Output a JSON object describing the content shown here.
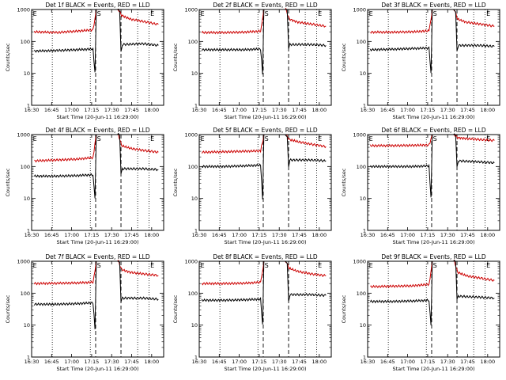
{
  "figure": {
    "panel_titles": [
      "Det 1f BLACK = Events, RED = LLD",
      "Det 2f BLACK = Events, RED = LLD",
      "Det 3f BLACK = Events, RED = LLD",
      "Det 4f BLACK = Events, RED = LLD",
      "Det 5f BLACK = Events, RED = LLD",
      "Det 6f BLACK = Events, RED = LLD",
      "Det 7f BLACK = Events, RED = LLD",
      "Det 8f BLACK = Events, RED = LLD",
      "Det 9f BLACK = Events, RED = LLD"
    ],
    "xlabel": "Start Time (20-Jun-11 16:29:00)",
    "ylabel": "Counts/sec",
    "x_tick_labels": [
      "16:30",
      "16:45",
      "17:00",
      "17:15",
      "17:30",
      "17:45",
      "18:00"
    ],
    "y_tick_labels": [
      "1",
      "10",
      "100",
      "1000"
    ],
    "marker_labels": [
      "E",
      "S",
      "E"
    ],
    "colors": {
      "events": "#000000",
      "lld": "#cc0000",
      "axes": "#000000"
    }
  },
  "chart_data": {
    "type": "line",
    "xlabel": "Start Time (20-Jun-11 16:29:00)",
    "ylabel": "Counts/sec",
    "x_units": "minutes from 16:29:00",
    "x_ticks": [
      1,
      16,
      31,
      46,
      61,
      76,
      91
    ],
    "xlim": [
      1,
      100
    ],
    "ylim": [
      1,
      1000
    ],
    "y_scale": "log",
    "marker_lines": {
      "dotted": [
        16.5,
        45,
        80.5,
        89
      ],
      "dashed": [
        49,
        68
      ],
      "labels_at": [
        {
          "text": "E",
          "x": 2
        },
        {
          "text": "S",
          "x": 50
        },
        {
          "text": "E",
          "x": 90
        }
      ]
    },
    "panels": [
      {
        "title": "Det 1f BLACK = Events, RED = LLD",
        "series": [
          {
            "name": "Events",
            "values": [
              [
                3,
                50
              ],
              [
                20,
                52
              ],
              [
                35,
                55
              ],
              [
                47,
                58
              ],
              [
                48.5,
                10
              ],
              [
                49.5,
                1000
              ],
              [
                66,
                1000
              ],
              [
                67,
                900
              ],
              [
                68,
                50
              ],
              [
                69,
                80
              ],
              [
                85,
                85
              ],
              [
                96,
                75
              ]
            ]
          },
          {
            "name": "LLD",
            "values": [
              [
                3,
                200
              ],
              [
                20,
                190
              ],
              [
                35,
                210
              ],
              [
                47,
                230
              ],
              [
                48.5,
                500
              ],
              [
                49.5,
                1000
              ],
              [
                66,
                1000
              ],
              [
                68.5,
                650
              ],
              [
                75,
                500
              ],
              [
                85,
                420
              ],
              [
                96,
                340
              ]
            ]
          }
        ]
      },
      {
        "title": "Det 2f BLACK = Events, RED = LLD",
        "series": [
          {
            "name": "Events",
            "values": [
              [
                3,
                55
              ],
              [
                20,
                55
              ],
              [
                35,
                55
              ],
              [
                47,
                58
              ],
              [
                48.5,
                10
              ],
              [
                49.5,
                1000
              ],
              [
                66,
                1000
              ],
              [
                67,
                900
              ],
              [
                68,
                55
              ],
              [
                69,
                80
              ],
              [
                85,
                80
              ],
              [
                96,
                75
              ]
            ]
          },
          {
            "name": "LLD",
            "values": [
              [
                3,
                190
              ],
              [
                20,
                190
              ],
              [
                35,
                195
              ],
              [
                47,
                210
              ],
              [
                48.5,
                500
              ],
              [
                49.5,
                1000
              ],
              [
                66,
                1000
              ],
              [
                68.5,
                500
              ],
              [
                75,
                400
              ],
              [
                85,
                350
              ],
              [
                96,
                300
              ]
            ]
          }
        ]
      },
      {
        "title": "Det 3f BLACK = Events, RED = LLD",
        "series": [
          {
            "name": "Events",
            "values": [
              [
                3,
                55
              ],
              [
                20,
                57
              ],
              [
                35,
                60
              ],
              [
                47,
                62
              ],
              [
                48.5,
                10
              ],
              [
                49.5,
                1000
              ],
              [
                66,
                1000
              ],
              [
                67,
                900
              ],
              [
                68,
                55
              ],
              [
                69,
                75
              ],
              [
                85,
                75
              ],
              [
                96,
                70
              ]
            ]
          },
          {
            "name": "LLD",
            "values": [
              [
                3,
                195
              ],
              [
                20,
                195
              ],
              [
                35,
                200
              ],
              [
                47,
                215
              ],
              [
                48.5,
                500
              ],
              [
                49.5,
                1000
              ],
              [
                66,
                1000
              ],
              [
                68.5,
                500
              ],
              [
                75,
                400
              ],
              [
                85,
                350
              ],
              [
                96,
                300
              ]
            ]
          }
        ]
      },
      {
        "title": "Det 4f BLACK = Events, RED = LLD",
        "series": [
          {
            "name": "Events",
            "values": [
              [
                3,
                50
              ],
              [
                20,
                50
              ],
              [
                35,
                52
              ],
              [
                47,
                55
              ],
              [
                48.5,
                10
              ],
              [
                49.5,
                1000
              ],
              [
                66,
                1000
              ],
              [
                67,
                900
              ],
              [
                68,
                55
              ],
              [
                69,
                85
              ],
              [
                85,
                85
              ],
              [
                96,
                80
              ]
            ]
          },
          {
            "name": "LLD",
            "values": [
              [
                3,
                150
              ],
              [
                20,
                160
              ],
              [
                35,
                170
              ],
              [
                47,
                190
              ],
              [
                48.5,
                500
              ],
              [
                49.5,
                1000
              ],
              [
                66,
                1000
              ],
              [
                68.5,
                450
              ],
              [
                75,
                370
              ],
              [
                85,
                320
              ],
              [
                96,
                280
              ]
            ]
          }
        ]
      },
      {
        "title": "Det 5f BLACK = Events, RED = LLD",
        "series": [
          {
            "name": "Events",
            "values": [
              [
                3,
                100
              ],
              [
                20,
                100
              ],
              [
                35,
                105
              ],
              [
                47,
                110
              ],
              [
                48.5,
                10
              ],
              [
                49.5,
                1000
              ],
              [
                66,
                1000
              ],
              [
                67,
                900
              ],
              [
                68,
                100
              ],
              [
                69,
                160
              ],
              [
                85,
                160
              ],
              [
                96,
                150
              ]
            ]
          },
          {
            "name": "LLD",
            "values": [
              [
                3,
                280
              ],
              [
                20,
                290
              ],
              [
                35,
                300
              ],
              [
                47,
                310
              ],
              [
                48.5,
                600
              ],
              [
                49.5,
                1000
              ],
              [
                66,
                1000
              ],
              [
                68.5,
                700
              ],
              [
                75,
                600
              ],
              [
                85,
                500
              ],
              [
                96,
                420
              ]
            ]
          }
        ]
      },
      {
        "title": "Det 6f BLACK = Events, RED = LLD",
        "series": [
          {
            "name": "Events",
            "values": [
              [
                3,
                100
              ],
              [
                20,
                100
              ],
              [
                35,
                100
              ],
              [
                47,
                105
              ],
              [
                48.5,
                10
              ],
              [
                49.5,
                1000
              ],
              [
                66,
                1000
              ],
              [
                67,
                900
              ],
              [
                68,
                100
              ],
              [
                69,
                150
              ],
              [
                85,
                140
              ],
              [
                96,
                130
              ]
            ]
          },
          {
            "name": "LLD",
            "values": [
              [
                3,
                450
              ],
              [
                20,
                450
              ],
              [
                35,
                460
              ],
              [
                47,
                470
              ],
              [
                48.5,
                700
              ],
              [
                49.5,
                1000
              ],
              [
                66,
                1000
              ],
              [
                68.5,
                800
              ],
              [
                75,
                750
              ],
              [
                85,
                700
              ],
              [
                96,
                650
              ]
            ]
          }
        ]
      },
      {
        "title": "Det 7f BLACK = Events, RED = LLD",
        "series": [
          {
            "name": "Events",
            "values": [
              [
                3,
                45
              ],
              [
                20,
                45
              ],
              [
                35,
                47
              ],
              [
                47,
                50
              ],
              [
                48.5,
                8
              ],
              [
                49.5,
                1000
              ],
              [
                66,
                1000
              ],
              [
                67,
                900
              ],
              [
                68,
                50
              ],
              [
                69,
                70
              ],
              [
                85,
                70
              ],
              [
                96,
                65
              ]
            ]
          },
          {
            "name": "LLD",
            "values": [
              [
                3,
                200
              ],
              [
                20,
                205
              ],
              [
                35,
                210
              ],
              [
                47,
                220
              ],
              [
                48.5,
                500
              ],
              [
                49.5,
                1000
              ],
              [
                66,
                1000
              ],
              [
                68.5,
                550
              ],
              [
                75,
                450
              ],
              [
                85,
                400
              ],
              [
                96,
                360
              ]
            ]
          }
        ]
      },
      {
        "title": "Det 8f BLACK = Events, RED = LLD",
        "series": [
          {
            "name": "Events",
            "values": [
              [
                3,
                60
              ],
              [
                20,
                60
              ],
              [
                35,
                62
              ],
              [
                47,
                65
              ],
              [
                48.5,
                10
              ],
              [
                49.5,
                1000
              ],
              [
                66,
                1000
              ],
              [
                67,
                900
              ],
              [
                68,
                60
              ],
              [
                69,
                90
              ],
              [
                85,
                90
              ],
              [
                96,
                85
              ]
            ]
          },
          {
            "name": "LLD",
            "values": [
              [
                3,
                200
              ],
              [
                20,
                200
              ],
              [
                35,
                205
              ],
              [
                47,
                220
              ],
              [
                48.5,
                500
              ],
              [
                49.5,
                1000
              ],
              [
                66,
                1000
              ],
              [
                68.5,
                600
              ],
              [
                75,
                480
              ],
              [
                85,
                400
              ],
              [
                96,
                350
              ]
            ]
          }
        ]
      },
      {
        "title": "Det 9f BLACK = Events, RED = LLD",
        "series": [
          {
            "name": "Events",
            "values": [
              [
                3,
                55
              ],
              [
                20,
                55
              ],
              [
                35,
                57
              ],
              [
                47,
                60
              ],
              [
                48.5,
                10
              ],
              [
                49.5,
                1000
              ],
              [
                66,
                1000
              ],
              [
                67,
                900
              ],
              [
                68,
                60
              ],
              [
                69,
                80
              ],
              [
                85,
                75
              ],
              [
                96,
                70
              ]
            ]
          },
          {
            "name": "LLD",
            "values": [
              [
                3,
                160
              ],
              [
                20,
                165
              ],
              [
                35,
                170
              ],
              [
                47,
                190
              ],
              [
                48.5,
                450
              ],
              [
                49.5,
                1000
              ],
              [
                66,
                1000
              ],
              [
                68.5,
                450
              ],
              [
                75,
                350
              ],
              [
                85,
                300
              ],
              [
                96,
                250
              ]
            ]
          }
        ]
      }
    ]
  }
}
